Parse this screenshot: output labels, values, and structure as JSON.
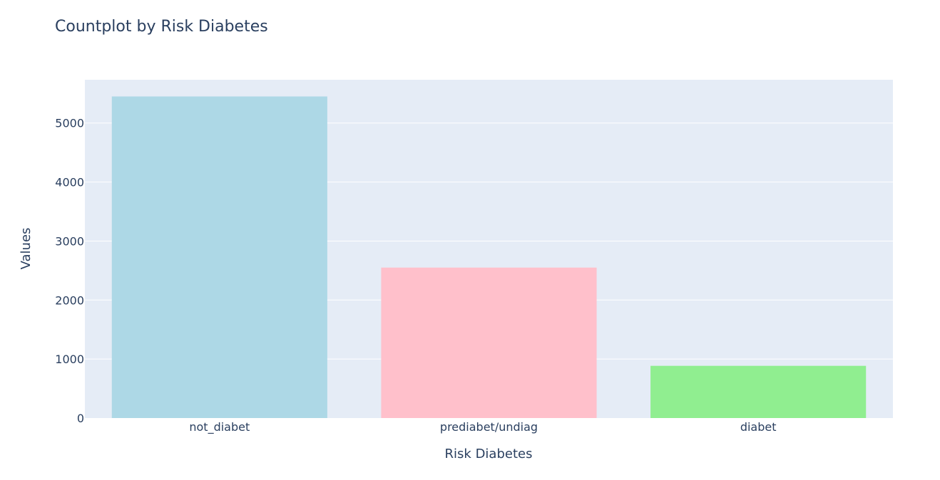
{
  "chart_data": {
    "type": "bar",
    "title": "Countplot by Risk Diabetes",
    "xlabel": "Risk Diabetes",
    "ylabel": "Values",
    "categories": [
      "not_diabet",
      "prediabet/undiag",
      "diabet"
    ],
    "values": [
      5450,
      2550,
      885
    ],
    "colors": [
      "#add8e6",
      "#ffc0cb",
      "#90ee90"
    ],
    "ylim": [
      0,
      5733
    ],
    "yticks": [
      0,
      1000,
      2000,
      3000,
      4000,
      5000
    ],
    "ytick_labels": [
      "0",
      "1000",
      "2000",
      "3000",
      "4000",
      "5000"
    ],
    "grid": true,
    "legend": false,
    "plot_background": "#e5ecf6",
    "text_color": "#2a3f5f"
  }
}
